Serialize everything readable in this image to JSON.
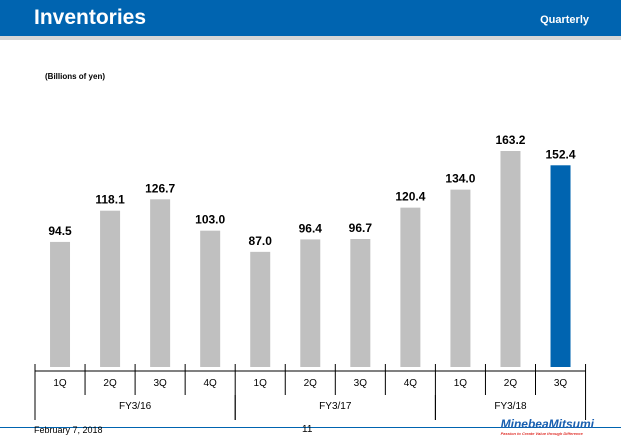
{
  "header": {
    "title": "Inventories",
    "period": "Quarterly"
  },
  "footer": {
    "date": "February 7, 2018",
    "page": "11",
    "logo": "MinebeaMitsumi",
    "tagline": "Passion to Create Value through Difference"
  },
  "colors": {
    "header": "#0064b0",
    "bar": "#c0c0c0",
    "highlight": "#0064b0"
  },
  "chart_data": {
    "type": "bar",
    "unit_label": "(Billions of yen)",
    "categories": [
      "1Q",
      "2Q",
      "3Q",
      "4Q",
      "1Q",
      "2Q",
      "3Q",
      "4Q",
      "1Q",
      "2Q",
      "3Q"
    ],
    "groups": [
      {
        "label": "FY3/16",
        "count": 4
      },
      {
        "label": "FY3/17",
        "count": 4
      },
      {
        "label": "FY3/18",
        "count": 3
      }
    ],
    "values": [
      94.5,
      118.1,
      126.7,
      103.0,
      87.0,
      96.4,
      96.7,
      120.4,
      134.0,
      163.2,
      152.4
    ],
    "labels": [
      "94.5",
      "118.1",
      "126.7",
      "103.0",
      "87.0",
      "96.4",
      "96.7",
      "120.4",
      "134.0",
      "163.2",
      "152.4"
    ],
    "highlight_index": 10,
    "ylim": [
      0,
      170
    ]
  }
}
